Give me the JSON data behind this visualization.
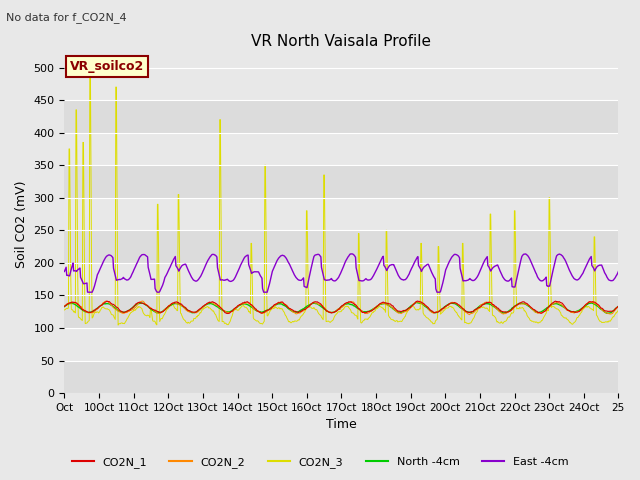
{
  "title": "VR North Vaisala Profile",
  "subtitle": "No data for f_CO2N_4",
  "ylabel": "Soil CO2 (mV)",
  "xlabel": "Time",
  "ylim": [
    0,
    520
  ],
  "yticks": [
    0,
    50,
    100,
    150,
    200,
    250,
    300,
    350,
    400,
    450,
    500
  ],
  "xtick_labels": [
    "Oct",
    "10Oct",
    "11Oct",
    "12Oct",
    "13Oct",
    "14Oct",
    "15Oct",
    "16Oct",
    "17Oct",
    "18Oct",
    "19Oct",
    "20Oct",
    "21Oct",
    "22Oct",
    "23Oct",
    "24Oct",
    "25"
  ],
  "box_label": "VR_soilco2",
  "fig_bg_color": "#e8e8e8",
  "plot_bg_color": "#e8e8e8",
  "colors": {
    "CO2N_1": "#dd0000",
    "CO2N_2": "#ff8800",
    "CO2N_3": "#dddd00",
    "North": "#00cc00",
    "East": "#8800cc"
  },
  "band_colors": [
    "#dcdcdc",
    "#e8e8e8"
  ],
  "legend_labels": [
    "CO2N_1",
    "CO2N_2",
    "CO2N_3",
    "North -4cm",
    "East -4cm"
  ]
}
